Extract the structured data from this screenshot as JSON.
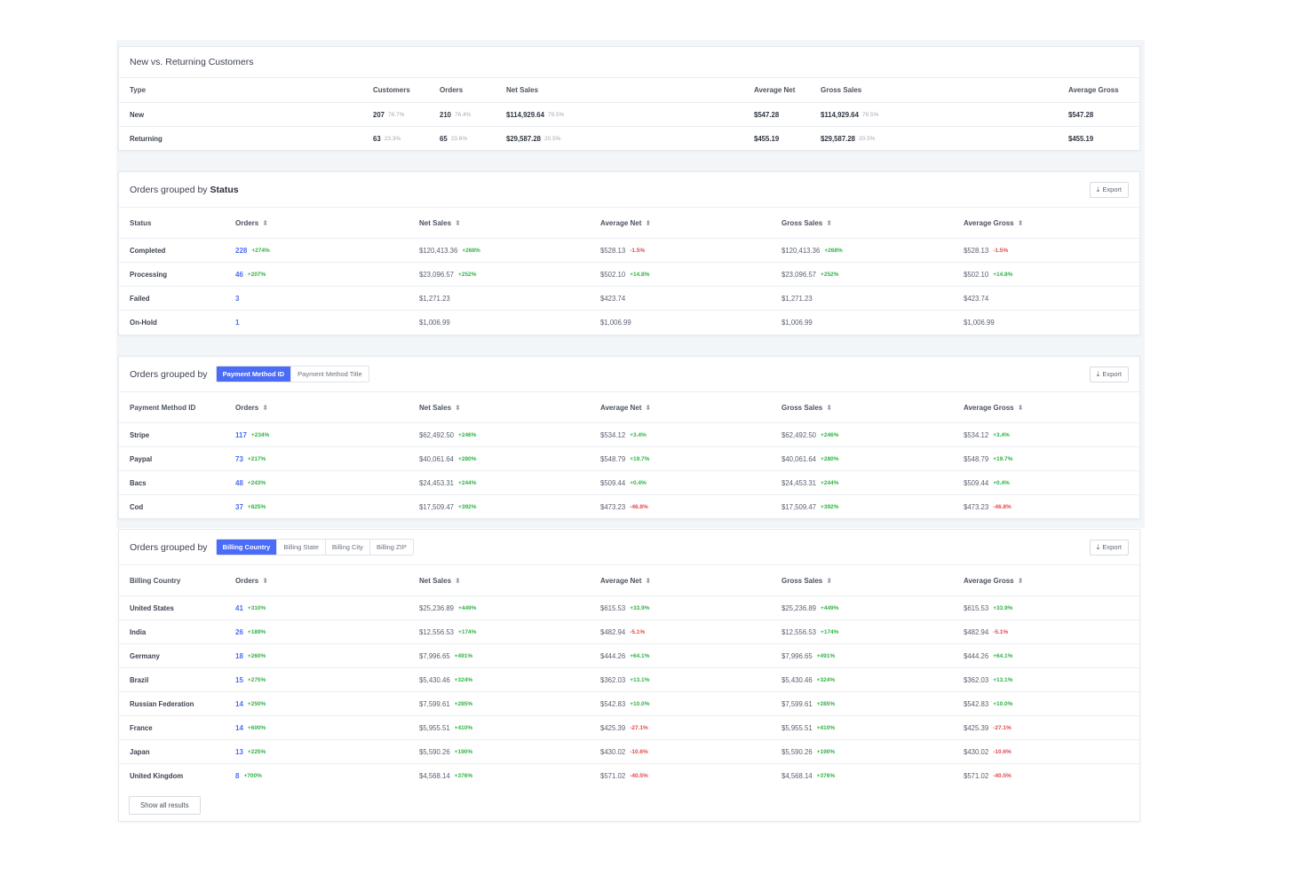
{
  "customers": {
    "title": "New vs. Returning Customers",
    "headers": [
      "Type",
      "Customers",
      "Orders",
      "Net Sales",
      "Average Net",
      "Gross Sales",
      "Average Gross"
    ],
    "rows": [
      {
        "type": "New",
        "customers": "207",
        "customers_pct": "76.7%",
        "orders": "210",
        "orders_pct": "76.4%",
        "net": "$114,929.64",
        "net_pct": "79.5%",
        "avg_net": "$547.28",
        "gross": "$114,929.64",
        "gross_pct": "79.5%",
        "avg_gross": "$547.28"
      },
      {
        "type": "Returning",
        "customers": "63",
        "customers_pct": "23.3%",
        "orders": "65",
        "orders_pct": "23.6%",
        "net": "$29,587.28",
        "net_pct": "20.5%",
        "avg_net": "$455.19",
        "gross": "$29,587.28",
        "gross_pct": "20.5%",
        "avg_gross": "$455.19"
      }
    ]
  },
  "status": {
    "title_prefix": "Orders grouped by",
    "title_bold": "Status",
    "export_label": "Export",
    "headers": [
      "Status",
      "Orders",
      "Net Sales",
      "Average Net",
      "Gross Sales",
      "Average Gross"
    ],
    "rows": [
      {
        "name": "Completed",
        "orders": "228",
        "orders_d": "+274%",
        "net": "$120,413.36",
        "net_d": "+268%",
        "avg_net": "$528.13",
        "avg_net_d": "-1.5%",
        "gross": "$120,413.36",
        "gross_d": "+268%",
        "avg_gross": "$528.13",
        "avg_gross_d": "-1.5%"
      },
      {
        "name": "Processing",
        "orders": "46",
        "orders_d": "+207%",
        "net": "$23,096.57",
        "net_d": "+252%",
        "avg_net": "$502.10",
        "avg_net_d": "+14.8%",
        "gross": "$23,096.57",
        "gross_d": "+252%",
        "avg_gross": "$502.10",
        "avg_gross_d": "+14.8%"
      },
      {
        "name": "Failed",
        "orders": "3",
        "orders_d": "",
        "net": "$1,271.23",
        "net_d": "",
        "avg_net": "$423.74",
        "avg_net_d": "",
        "gross": "$1,271.23",
        "gross_d": "",
        "avg_gross": "$423.74",
        "avg_gross_d": ""
      },
      {
        "name": "On-Hold",
        "orders": "1",
        "orders_d": "",
        "net": "$1,006.99",
        "net_d": "",
        "avg_net": "$1,006.99",
        "avg_net_d": "",
        "gross": "$1,006.99",
        "gross_d": "",
        "avg_gross": "$1,006.99",
        "avg_gross_d": ""
      }
    ]
  },
  "payment": {
    "title_prefix": "Orders grouped by",
    "tabs": [
      "Payment Method ID",
      "Payment Method Title"
    ],
    "active_tab": 0,
    "export_label": "Export",
    "headers": [
      "Payment Method ID",
      "Orders",
      "Net Sales",
      "Average Net",
      "Gross Sales",
      "Average Gross"
    ],
    "rows": [
      {
        "name": "Stripe",
        "orders": "117",
        "orders_d": "+234%",
        "net": "$62,492.50",
        "net_d": "+246%",
        "avg_net": "$534.12",
        "avg_net_d": "+3.4%",
        "gross": "$62,492.50",
        "gross_d": "+246%",
        "avg_gross": "$534.12",
        "avg_gross_d": "+3.4%"
      },
      {
        "name": "Paypal",
        "orders": "73",
        "orders_d": "+217%",
        "net": "$40,061.64",
        "net_d": "+280%",
        "avg_net": "$548.79",
        "avg_net_d": "+19.7%",
        "gross": "$40,061.64",
        "gross_d": "+280%",
        "avg_gross": "$548.79",
        "avg_gross_d": "+19.7%"
      },
      {
        "name": "Bacs",
        "orders": "48",
        "orders_d": "+243%",
        "net": "$24,453.31",
        "net_d": "+244%",
        "avg_net": "$509.44",
        "avg_net_d": "+0.4%",
        "gross": "$24,453.31",
        "gross_d": "+244%",
        "avg_gross": "$509.44",
        "avg_gross_d": "+0.4%"
      },
      {
        "name": "Cod",
        "orders": "37",
        "orders_d": "+825%",
        "net": "$17,509.47",
        "net_d": "+392%",
        "avg_net": "$473.23",
        "avg_net_d": "-46.8%",
        "gross": "$17,509.47",
        "gross_d": "+392%",
        "avg_gross": "$473.23",
        "avg_gross_d": "-46.8%"
      }
    ]
  },
  "billing": {
    "title_prefix": "Orders grouped by",
    "tabs": [
      "Billing Country",
      "Billing State",
      "Billing City",
      "Billing ZIP"
    ],
    "active_tab": 0,
    "export_label": "Export",
    "show_all_label": "Show all results",
    "headers": [
      "Billing Country",
      "Orders",
      "Net Sales",
      "Average Net",
      "Gross Sales",
      "Average Gross"
    ],
    "rows": [
      {
        "name": "United States",
        "orders": "41",
        "orders_d": "+310%",
        "net": "$25,236.89",
        "net_d": "+449%",
        "avg_net": "$615.53",
        "avg_net_d": "+33.9%",
        "gross": "$25,236.89",
        "gross_d": "+449%",
        "avg_gross": "$615.53",
        "avg_gross_d": "+33.9%"
      },
      {
        "name": "India",
        "orders": "26",
        "orders_d": "+189%",
        "net": "$12,556.53",
        "net_d": "+174%",
        "avg_net": "$482.94",
        "avg_net_d": "-5.1%",
        "gross": "$12,556.53",
        "gross_d": "+174%",
        "avg_gross": "$482.94",
        "avg_gross_d": "-5.1%"
      },
      {
        "name": "Germany",
        "orders": "18",
        "orders_d": "+260%",
        "net": "$7,996.65",
        "net_d": "+491%",
        "avg_net": "$444.26",
        "avg_net_d": "+64.1%",
        "gross": "$7,996.65",
        "gross_d": "+491%",
        "avg_gross": "$444.26",
        "avg_gross_d": "+64.1%"
      },
      {
        "name": "Brazil",
        "orders": "15",
        "orders_d": "+275%",
        "net": "$5,430.46",
        "net_d": "+324%",
        "avg_net": "$362.03",
        "avg_net_d": "+13.1%",
        "gross": "$5,430.46",
        "gross_d": "+324%",
        "avg_gross": "$362.03",
        "avg_gross_d": "+13.1%"
      },
      {
        "name": "Russian Federation",
        "orders": "14",
        "orders_d": "+250%",
        "net": "$7,599.61",
        "net_d": "+285%",
        "avg_net": "$542.83",
        "avg_net_d": "+10.0%",
        "gross": "$7,599.61",
        "gross_d": "+285%",
        "avg_gross": "$542.83",
        "avg_gross_d": "+10.0%"
      },
      {
        "name": "France",
        "orders": "14",
        "orders_d": "+600%",
        "net": "$5,955.51",
        "net_d": "+410%",
        "avg_net": "$425.39",
        "avg_net_d": "-27.1%",
        "gross": "$5,955.51",
        "gross_d": "+410%",
        "avg_gross": "$425.39",
        "avg_gross_d": "-27.1%"
      },
      {
        "name": "Japan",
        "orders": "13",
        "orders_d": "+225%",
        "net": "$5,590.26",
        "net_d": "+190%",
        "avg_net": "$430.02",
        "avg_net_d": "-10.6%",
        "gross": "$5,590.26",
        "gross_d": "+190%",
        "avg_gross": "$430.02",
        "avg_gross_d": "-10.6%"
      },
      {
        "name": "United Kingdom",
        "orders": "8",
        "orders_d": "+700%",
        "net": "$4,568.14",
        "net_d": "+376%",
        "avg_net": "$571.02",
        "avg_net_d": "-40.5%",
        "gross": "$4,568.14",
        "gross_d": "+376%",
        "avg_gross": "$571.02",
        "avg_gross_d": "-40.5%"
      }
    ]
  },
  "colors": {
    "accent": "#4a6cf7",
    "positive": "#2fb344",
    "negative": "#e5484d"
  },
  "icons": {
    "export": "download-icon",
    "sort": "sort-icon"
  }
}
